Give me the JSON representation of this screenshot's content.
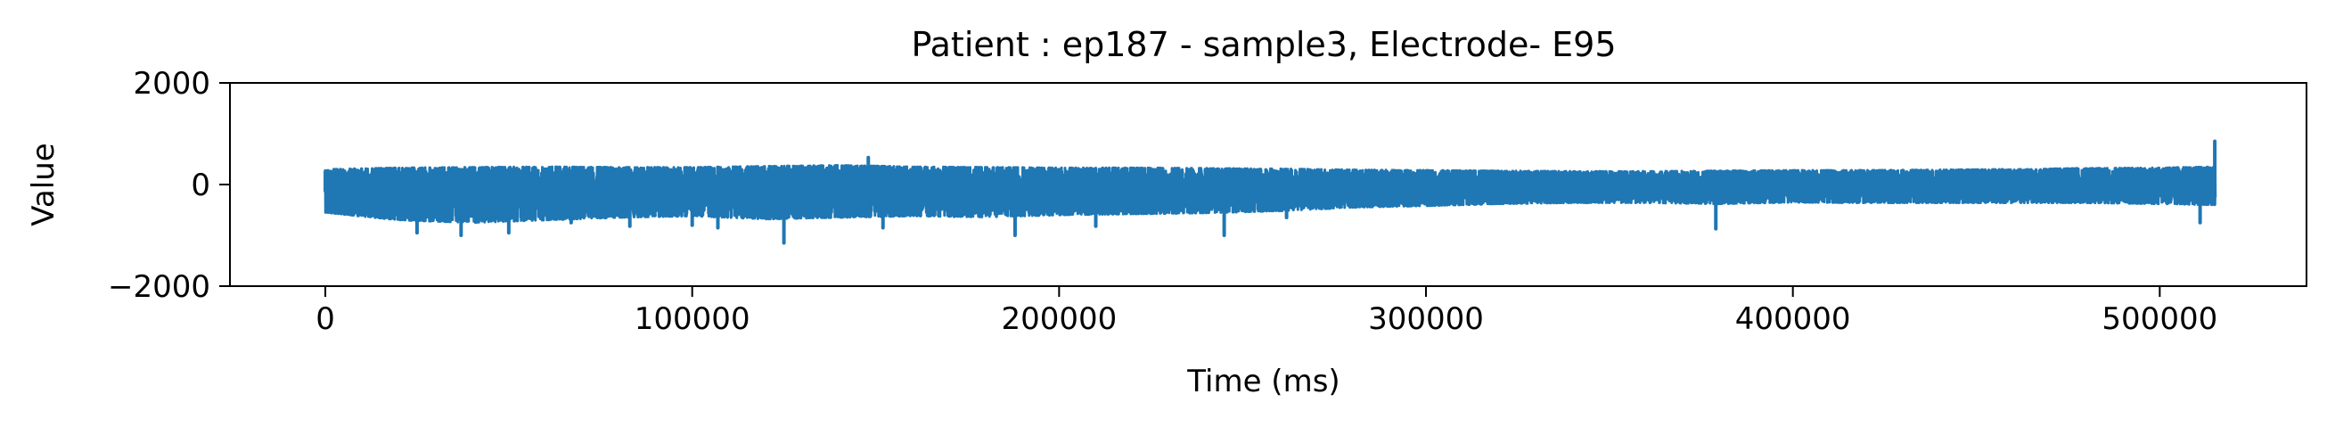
{
  "chart_data": {
    "type": "line",
    "title": "Patient : ep187 - sample3, Electrode- E95",
    "xlabel": "Time (ms)",
    "ylabel": "Value",
    "xlim": [
      -26000,
      540000
    ],
    "ylim": [
      -2000,
      2000
    ],
    "xticks": [
      0,
      100000,
      200000,
      300000,
      400000,
      500000
    ],
    "xtick_labels": [
      "0",
      "100000",
      "200000",
      "300000",
      "400000",
      "500000"
    ],
    "yticks": [
      -2000,
      0,
      2000
    ],
    "ytick_labels": [
      "−2000",
      "0",
      "2000"
    ],
    "grid": false,
    "legend": "none",
    "series": [
      {
        "color": "#1f77b4",
        "x_start": 0,
        "x_end": 515000,
        "envelope_x": [
          0,
          20000,
          40000,
          60000,
          80000,
          100000,
          120000,
          140000,
          160000,
          180000,
          200000,
          220000,
          240000,
          260000,
          280000,
          300000,
          320000,
          340000,
          360000,
          380000,
          400000,
          420000,
          440000,
          460000,
          480000,
          500000,
          515000
        ],
        "envelope_upper": [
          300,
          330,
          340,
          350,
          340,
          340,
          360,
          380,
          350,
          340,
          330,
          330,
          320,
          310,
          290,
          280,
          270,
          260,
          260,
          270,
          280,
          280,
          290,
          300,
          320,
          330,
          350
        ],
        "envelope_lower": [
          -550,
          -700,
          -750,
          -700,
          -650,
          -620,
          -680,
          -650,
          -620,
          -640,
          -600,
          -580,
          -560,
          -520,
          -450,
          -420,
          -380,
          -360,
          -360,
          -380,
          -350,
          -360,
          -360,
          -360,
          -360,
          -380,
          -400
        ],
        "spikes": [
          {
            "x": 0,
            "y": 250
          },
          {
            "x": 25000,
            "y": -950
          },
          {
            "x": 37000,
            "y": -1000
          },
          {
            "x": 50000,
            "y": -950
          },
          {
            "x": 67000,
            "y": -750
          },
          {
            "x": 83000,
            "y": -820
          },
          {
            "x": 100000,
            "y": -800
          },
          {
            "x": 107000,
            "y": -850
          },
          {
            "x": 125000,
            "y": -1150
          },
          {
            "x": 148000,
            "y": 530
          },
          {
            "x": 152000,
            "y": -850
          },
          {
            "x": 188000,
            "y": -1000
          },
          {
            "x": 210000,
            "y": -820
          },
          {
            "x": 245000,
            "y": -1000
          },
          {
            "x": 262000,
            "y": -650
          },
          {
            "x": 379000,
            "y": -870
          },
          {
            "x": 511000,
            "y": -750
          },
          {
            "x": 515000,
            "y": 850
          }
        ]
      }
    ]
  }
}
